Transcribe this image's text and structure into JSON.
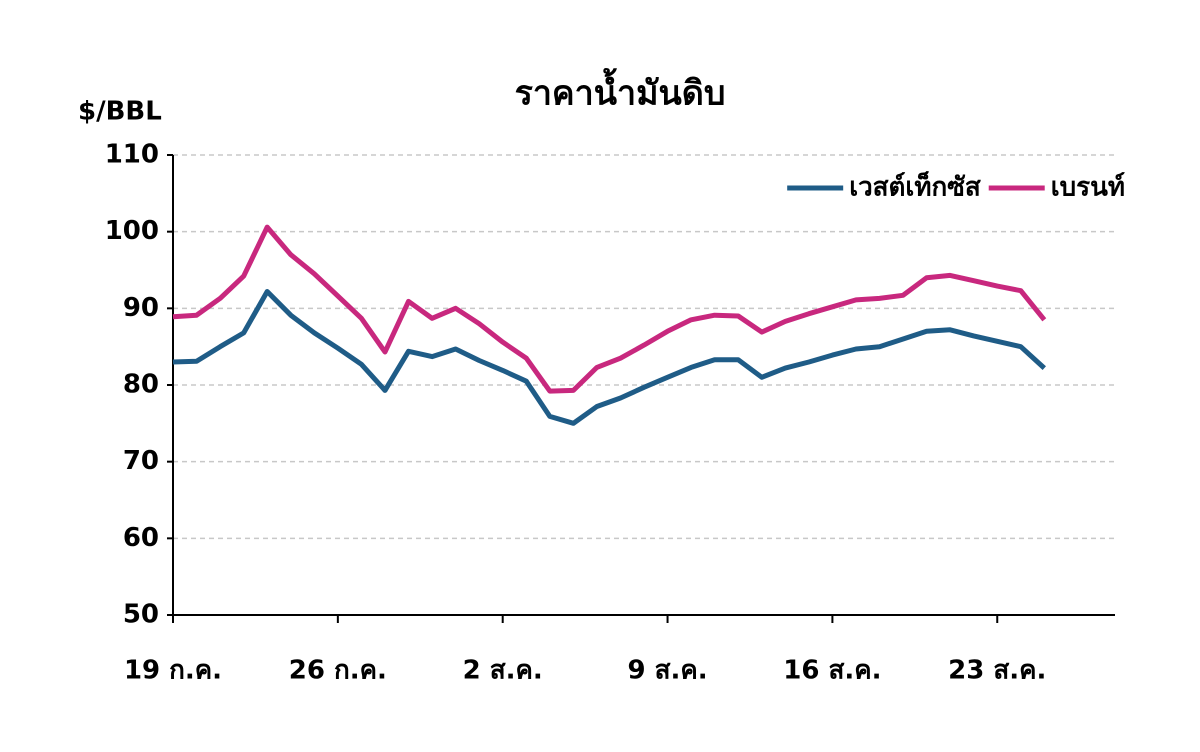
{
  "chart_data": {
    "type": "line",
    "title": "ราคาน้ำมันดิบ",
    "y_label": "$/BBL",
    "categories": [
      "19 ก.ค.",
      null,
      null,
      null,
      null,
      null,
      null,
      "26 ก.ค.",
      null,
      null,
      null,
      null,
      null,
      null,
      "2 ส.ค.",
      null,
      null,
      null,
      null,
      null,
      null,
      "9 ส.ค.",
      null,
      null,
      null,
      null,
      null,
      null,
      "16 ส.ค.",
      null,
      null,
      null,
      null,
      null,
      null,
      "23 ส.ค.",
      null,
      null,
      null,
      null,
      null
    ],
    "series": [
      {
        "name": "เวสต์เท็กซัส",
        "color": "#1f5c87",
        "values": [
          83.0,
          83.1,
          85.0,
          86.8,
          92.2,
          89.1,
          86.8,
          84.8,
          82.7,
          79.3,
          84.4,
          83.7,
          84.7,
          83.2,
          81.9,
          80.5,
          75.9,
          75.0,
          77.2,
          78.3,
          79.7,
          81.0,
          82.3,
          83.3,
          83.3,
          81.0,
          82.2,
          83.0,
          83.9,
          84.7,
          85.0,
          86.0,
          87.0,
          87.2,
          86.4,
          85.7,
          85.0,
          82.2,
          null,
          null,
          null
        ]
      },
      {
        "name": "เบรนท์",
        "color": "#c8287e",
        "values": [
          88.9,
          89.1,
          91.3,
          94.2,
          100.6,
          97.0,
          94.5,
          91.6,
          88.7,
          84.3,
          90.9,
          88.7,
          90.0,
          88.0,
          85.6,
          83.5,
          79.2,
          79.3,
          82.3,
          83.5,
          85.2,
          87.0,
          88.5,
          89.1,
          89.0,
          86.9,
          88.3,
          89.3,
          90.2,
          91.1,
          91.3,
          91.7,
          94.0,
          94.3,
          93.6,
          92.9,
          92.3,
          88.5,
          null,
          null,
          null
        ]
      }
    ],
    "ylim": [
      50,
      110
    ],
    "yticks": [
      50,
      60,
      70,
      80,
      90,
      100,
      110
    ],
    "grid": true,
    "legend": "upper right"
  }
}
